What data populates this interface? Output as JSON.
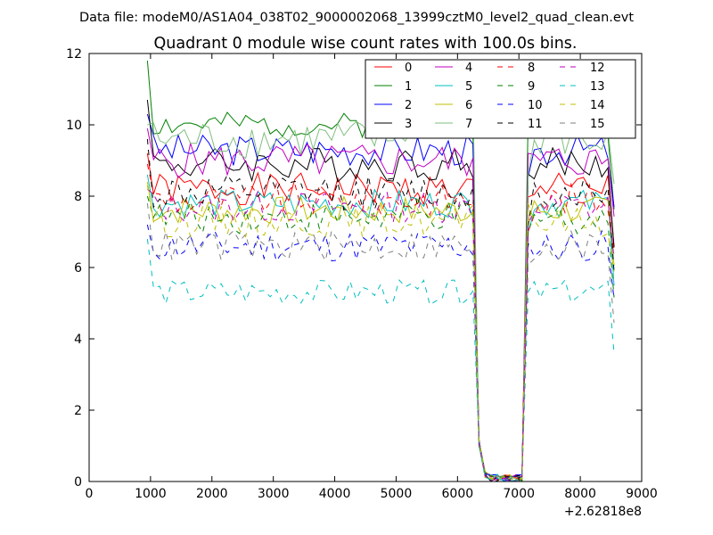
{
  "chart_data": {
    "type": "line",
    "suptitle": "Data file: modeM0/AS1A04_038T02_9000002068_13999cztM0_level2_quad_clean.evt",
    "title": "Quadrant 0 module wise count rates with 100.0s bins.",
    "xlabel": "",
    "ylabel": "",
    "x_offset_label": "+2.62818e8",
    "xlim": [
      0,
      9000
    ],
    "ylim": [
      0,
      12
    ],
    "xticks": [
      0,
      1000,
      2000,
      3000,
      4000,
      5000,
      6000,
      7000,
      8000,
      9000
    ],
    "yticks": [
      0,
      2,
      4,
      6,
      8,
      10,
      12
    ],
    "grid": false,
    "legend_position": "top-right",
    "legend_columns": 4,
    "segments": [
      {
        "x_start": 950,
        "x_end": 6250,
        "step": 100
      },
      {
        "x": [
          6350,
          6450,
          6550,
          6650,
          6750,
          6850,
          6950,
          7050
        ]
      },
      {
        "x_start": 7150,
        "x_end": 8550,
        "step": 100
      }
    ],
    "series": [
      {
        "name": "0",
        "color": "#ff0000",
        "style": "solid",
        "level": 8.2,
        "amp": 0.45,
        "seed": 1,
        "first": 9.2
      },
      {
        "name": "1",
        "color": "#008000",
        "style": "solid",
        "level": 10.0,
        "amp": 0.35,
        "seed": 2,
        "first": 11.8
      },
      {
        "name": "2",
        "color": "#0000ff",
        "style": "solid",
        "level": 9.3,
        "amp": 0.45,
        "seed": 3,
        "first": 10.3
      },
      {
        "name": "3",
        "color": "#000000",
        "style": "solid",
        "level": 8.9,
        "amp": 0.5,
        "seed": 4,
        "first": 10.7
      },
      {
        "name": "4",
        "color": "#bf00bf",
        "style": "solid",
        "level": 9.0,
        "amp": 0.5,
        "seed": 5,
        "first": 9.9
      },
      {
        "name": "5",
        "color": "#00bfbf",
        "style": "solid",
        "level": 7.8,
        "amp": 0.4,
        "seed": 6,
        "first": 8.6
      },
      {
        "name": "6",
        "color": "#bfbf00",
        "style": "solid",
        "level": 7.6,
        "amp": 0.4,
        "seed": 7,
        "first": 8.4
      },
      {
        "name": "7",
        "color": "#7fbf7f",
        "style": "solid",
        "level": 9.6,
        "amp": 0.55,
        "seed": 8,
        "first": 10.0,
        "rise_to": 10.8
      },
      {
        "name": "8",
        "color": "#ff0000",
        "style": "dashed",
        "level": 7.9,
        "amp": 0.45,
        "seed": 9,
        "first": 8.9
      },
      {
        "name": "9",
        "color": "#008000",
        "style": "dashed",
        "level": 7.4,
        "amp": 0.45,
        "seed": 10,
        "first": 8.0
      },
      {
        "name": "10",
        "color": "#0000ff",
        "style": "dashed",
        "level": 6.6,
        "amp": 0.45,
        "seed": 11,
        "first": 7.2
      },
      {
        "name": "11",
        "color": "#000000",
        "style": "dashed",
        "level": 8.1,
        "amp": 0.5,
        "seed": 12,
        "first": 9.6
      },
      {
        "name": "12",
        "color": "#bf00bf",
        "style": "dashed",
        "level": 7.7,
        "amp": 0.45,
        "seed": 13,
        "first": 8.2
      },
      {
        "name": "13",
        "color": "#00bfbf",
        "style": "dashed",
        "level": 5.3,
        "amp": 0.35,
        "seed": 14,
        "first": 6.8,
        "last": 3.6
      },
      {
        "name": "14",
        "color": "#bfbf00",
        "style": "dashed",
        "level": 7.3,
        "amp": 0.45,
        "seed": 15,
        "first": 8.3
      },
      {
        "name": "15",
        "color": "#7f7f7f",
        "style": "dashed",
        "level": 6.6,
        "amp": 0.45,
        "seed": 16,
        "first": 7.8
      }
    ]
  }
}
